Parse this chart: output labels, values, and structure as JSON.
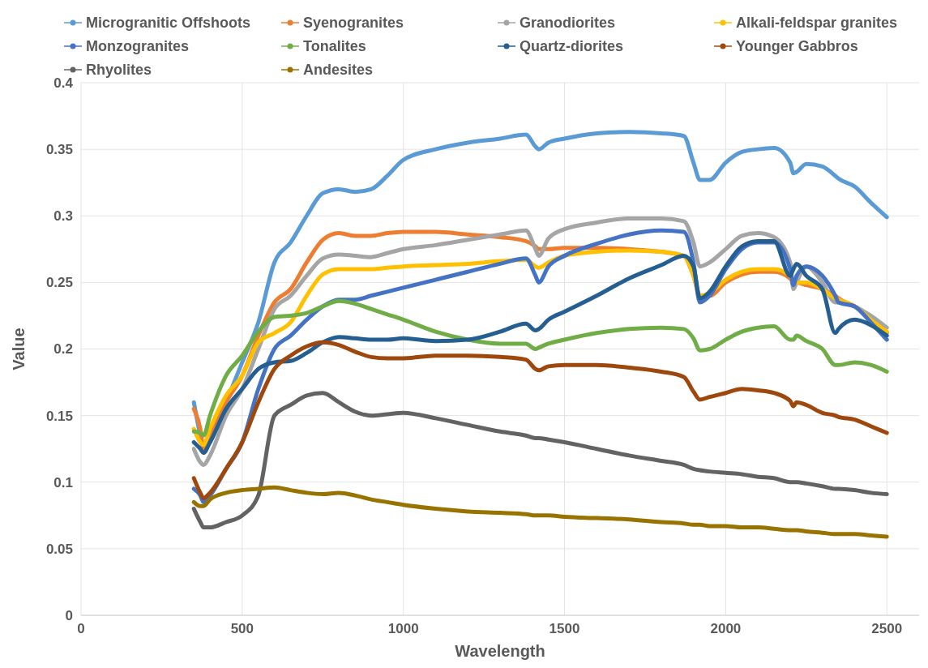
{
  "chart_data": {
    "type": "line",
    "xlabel": "Wavelength",
    "ylabel": "Value",
    "xlim": [
      0,
      2600
    ],
    "xticks": [
      0,
      500,
      1000,
      1500,
      2000,
      2500
    ],
    "ylim": [
      0,
      0.4
    ],
    "yticks": [
      0,
      0.05,
      0.1,
      0.15,
      0.2,
      0.25,
      0.3,
      0.35,
      0.4
    ],
    "grid": true,
    "legend": "top",
    "x": [
      350,
      370,
      380,
      400,
      450,
      500,
      550,
      600,
      650,
      700,
      750,
      800,
      850,
      900,
      950,
      1000,
      1100,
      1200,
      1300,
      1380,
      1410,
      1420,
      1450,
      1500,
      1600,
      1700,
      1800,
      1870,
      1900,
      1920,
      1950,
      2000,
      2050,
      2100,
      2150,
      2200,
      2210,
      2220,
      2250,
      2300,
      2340,
      2350,
      2400,
      2450,
      2500
    ],
    "series": [
      {
        "name": "Microgranitic Offshoots",
        "color": "#5b9bd5",
        "values": [
          0.16,
          0.135,
          0.125,
          0.13,
          0.16,
          0.19,
          0.22,
          0.265,
          0.28,
          0.3,
          0.317,
          0.32,
          0.318,
          0.32,
          0.33,
          0.342,
          0.35,
          0.355,
          0.358,
          0.361,
          0.352,
          0.35,
          0.355,
          0.358,
          0.362,
          0.363,
          0.362,
          0.36,
          0.34,
          0.327,
          0.327,
          0.34,
          0.348,
          0.35,
          0.351,
          0.34,
          0.332,
          0.333,
          0.339,
          0.337,
          0.33,
          0.328,
          0.322,
          0.31,
          0.299
        ]
      },
      {
        "name": "Syenogranites",
        "color": "#ed7d31",
        "values": [
          0.155,
          0.14,
          0.125,
          0.135,
          0.16,
          0.18,
          0.21,
          0.235,
          0.245,
          0.265,
          0.282,
          0.287,
          0.285,
          0.285,
          0.287,
          0.288,
          0.288,
          0.286,
          0.284,
          0.281,
          0.277,
          0.275,
          0.275,
          0.276,
          0.276,
          0.275,
          0.273,
          0.27,
          0.255,
          0.24,
          0.24,
          0.25,
          0.256,
          0.258,
          0.258,
          0.253,
          0.25,
          0.25,
          0.248,
          0.245,
          0.24,
          0.238,
          0.232,
          0.222,
          0.212
        ]
      },
      {
        "name": "Granodiorites",
        "color": "#a5a5a5",
        "values": [
          0.125,
          0.115,
          0.113,
          0.12,
          0.15,
          0.17,
          0.2,
          0.23,
          0.24,
          0.255,
          0.268,
          0.271,
          0.27,
          0.269,
          0.272,
          0.275,
          0.278,
          0.282,
          0.286,
          0.289,
          0.275,
          0.27,
          0.283,
          0.29,
          0.295,
          0.298,
          0.298,
          0.296,
          0.28,
          0.262,
          0.265,
          0.275,
          0.285,
          0.287,
          0.284,
          0.265,
          0.245,
          0.25,
          0.262,
          0.25,
          0.235,
          0.235,
          0.232,
          0.225,
          0.216
        ]
      },
      {
        "name": "Alkali-feldspar granites",
        "color": "#ffc000",
        "values": [
          0.14,
          0.13,
          0.128,
          0.14,
          0.165,
          0.18,
          0.205,
          0.212,
          0.22,
          0.24,
          0.256,
          0.26,
          0.26,
          0.26,
          0.261,
          0.262,
          0.263,
          0.264,
          0.266,
          0.267,
          0.262,
          0.261,
          0.265,
          0.27,
          0.273,
          0.274,
          0.273,
          0.27,
          0.255,
          0.24,
          0.242,
          0.252,
          0.258,
          0.26,
          0.26,
          0.255,
          0.25,
          0.25,
          0.25,
          0.245,
          0.238,
          0.237,
          0.232,
          0.222,
          0.213
        ]
      },
      {
        "name": "Monzogranites",
        "color": "#4472c4",
        "values": [
          0.095,
          0.09,
          0.085,
          0.09,
          0.11,
          0.13,
          0.17,
          0.2,
          0.21,
          0.222,
          0.232,
          0.237,
          0.237,
          0.24,
          0.243,
          0.246,
          0.252,
          0.258,
          0.264,
          0.268,
          0.255,
          0.25,
          0.262,
          0.27,
          0.279,
          0.286,
          0.289,
          0.288,
          0.265,
          0.235,
          0.24,
          0.26,
          0.275,
          0.28,
          0.28,
          0.26,
          0.248,
          0.255,
          0.262,
          0.255,
          0.24,
          0.235,
          0.232,
          0.22,
          0.207
        ]
      },
      {
        "name": "Tonalites",
        "color": "#70ad47",
        "values": [
          0.138,
          0.137,
          0.135,
          0.15,
          0.18,
          0.195,
          0.213,
          0.224,
          0.225,
          0.227,
          0.232,
          0.236,
          0.234,
          0.23,
          0.226,
          0.222,
          0.213,
          0.207,
          0.204,
          0.204,
          0.2,
          0.201,
          0.204,
          0.207,
          0.212,
          0.215,
          0.216,
          0.215,
          0.208,
          0.199,
          0.2,
          0.207,
          0.213,
          0.216,
          0.217,
          0.207,
          0.207,
          0.21,
          0.206,
          0.2,
          0.188,
          0.188,
          0.19,
          0.188,
          0.183
        ]
      },
      {
        "name": "Quartz-diorites",
        "color": "#255e91",
        "values": [
          0.13,
          0.125,
          0.122,
          0.13,
          0.155,
          0.17,
          0.185,
          0.19,
          0.191,
          0.197,
          0.205,
          0.209,
          0.208,
          0.207,
          0.207,
          0.208,
          0.206,
          0.207,
          0.213,
          0.219,
          0.214,
          0.215,
          0.222,
          0.228,
          0.24,
          0.253,
          0.263,
          0.27,
          0.262,
          0.238,
          0.243,
          0.262,
          0.277,
          0.281,
          0.281,
          0.255,
          0.26,
          0.264,
          0.255,
          0.245,
          0.212,
          0.215,
          0.222,
          0.218,
          0.21
        ]
      },
      {
        "name": "Younger Gabbros",
        "color": "#9e480e",
        "values": [
          0.103,
          0.092,
          0.088,
          0.092,
          0.11,
          0.13,
          0.16,
          0.185,
          0.195,
          0.202,
          0.205,
          0.203,
          0.198,
          0.194,
          0.193,
          0.193,
          0.195,
          0.195,
          0.194,
          0.192,
          0.185,
          0.184,
          0.187,
          0.188,
          0.188,
          0.186,
          0.183,
          0.179,
          0.168,
          0.162,
          0.164,
          0.167,
          0.17,
          0.169,
          0.167,
          0.161,
          0.157,
          0.16,
          0.158,
          0.152,
          0.15,
          0.149,
          0.147,
          0.142,
          0.137
        ]
      },
      {
        "name": "Rhyolites",
        "color": "#636363",
        "values": [
          0.08,
          0.07,
          0.066,
          0.066,
          0.07,
          0.075,
          0.09,
          0.15,
          0.158,
          0.165,
          0.167,
          0.16,
          0.153,
          0.15,
          0.151,
          0.152,
          0.148,
          0.143,
          0.138,
          0.135,
          0.133,
          0.133,
          0.132,
          0.13,
          0.125,
          0.12,
          0.116,
          0.113,
          0.11,
          0.109,
          0.108,
          0.107,
          0.106,
          0.104,
          0.103,
          0.1,
          0.1,
          0.1,
          0.099,
          0.097,
          0.095,
          0.095,
          0.094,
          0.092,
          0.091
        ]
      },
      {
        "name": "Andesites",
        "color": "#997300",
        "values": [
          0.085,
          0.082,
          0.082,
          0.087,
          0.092,
          0.094,
          0.095,
          0.096,
          0.094,
          0.092,
          0.091,
          0.092,
          0.09,
          0.087,
          0.085,
          0.083,
          0.08,
          0.078,
          0.077,
          0.076,
          0.075,
          0.075,
          0.075,
          0.074,
          0.073,
          0.072,
          0.07,
          0.069,
          0.068,
          0.068,
          0.067,
          0.067,
          0.066,
          0.066,
          0.065,
          0.064,
          0.064,
          0.064,
          0.063,
          0.062,
          0.061,
          0.061,
          0.061,
          0.06,
          0.059
        ]
      }
    ]
  }
}
